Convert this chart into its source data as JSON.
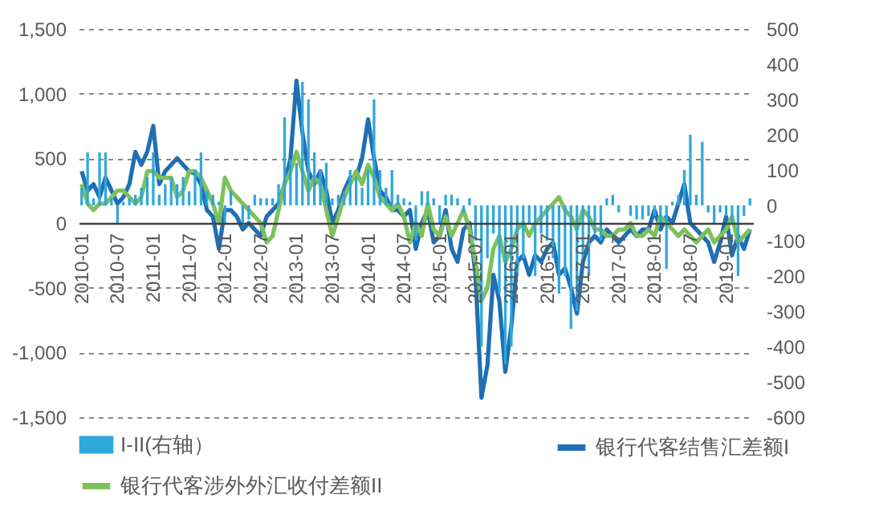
{
  "chart_data": {
    "type": "line",
    "categories": [
      "2010-01",
      null,
      null,
      null,
      null,
      null,
      "2010-07",
      null,
      null,
      null,
      null,
      null,
      "2011-01",
      null,
      null,
      null,
      null,
      null,
      "2011-07",
      null,
      null,
      null,
      null,
      null,
      "2012-01",
      null,
      null,
      null,
      null,
      null,
      "2012-07",
      null,
      null,
      null,
      null,
      null,
      "2013-01",
      null,
      null,
      null,
      null,
      null,
      "2013-07",
      null,
      null,
      null,
      null,
      null,
      "2014-01",
      null,
      null,
      null,
      null,
      null,
      "2014-07",
      null,
      null,
      null,
      null,
      null,
      "2015-01",
      null,
      null,
      null,
      null,
      null,
      "2015-07",
      null,
      null,
      null,
      null,
      null,
      "2016-01",
      null,
      null,
      null,
      null,
      null,
      "2016-07",
      null,
      null,
      null,
      null,
      null,
      "2017-01",
      null,
      null,
      null,
      null,
      null,
      "2017-07",
      null,
      null,
      null,
      null,
      null,
      "2018-01",
      null,
      null,
      null,
      null,
      null,
      "2018-07",
      null,
      null,
      null,
      null,
      null,
      "2019-01",
      null,
      null,
      null,
      null
    ],
    "series": [
      {
        "name": "I-II(右轴）",
        "type": "bar",
        "axis": "y2",
        "color": "#2ea8dc",
        "values": [
          50,
          150,
          20,
          150,
          150,
          20,
          -50,
          10,
          20,
          30,
          50,
          80,
          150,
          30,
          60,
          80,
          60,
          80,
          40,
          100,
          150,
          40,
          30,
          10,
          -50,
          40,
          0,
          -50,
          -40,
          30,
          20,
          20,
          20,
          60,
          250,
          130,
          120,
          350,
          300,
          150,
          100,
          120,
          20,
          30,
          40,
          100,
          80,
          50,
          100,
          300,
          100,
          50,
          100,
          30,
          20,
          10,
          -100,
          40,
          40,
          20,
          -50,
          30,
          30,
          20,
          -20,
          20,
          -100,
          -400,
          -150,
          -80,
          -250,
          -450,
          -400,
          -200,
          -150,
          -50,
          -200,
          -80,
          -100,
          -150,
          -250,
          -200,
          -350,
          -300,
          -150,
          -200,
          -80,
          -100,
          20,
          30,
          -20,
          0,
          -30,
          -40,
          -40,
          -30,
          -30,
          -50,
          -180,
          10,
          30,
          100,
          200,
          30,
          180,
          -20,
          -50,
          -20,
          -30,
          -50,
          -200,
          -30,
          20
        ]
      },
      {
        "name": "银行代客结售汇差额I",
        "color": "#1f6fb4",
        "values": [
          400,
          250,
          300,
          200,
          350,
          250,
          150,
          200,
          300,
          550,
          450,
          550,
          750,
          300,
          400,
          450,
          500,
          450,
          400,
          380,
          300,
          100,
          50,
          -200,
          100,
          100,
          50,
          -50,
          0,
          -50,
          -100,
          50,
          100,
          150,
          300,
          500,
          1100,
          700,
          400,
          300,
          400,
          250,
          0,
          100,
          250,
          350,
          350,
          500,
          800,
          500,
          250,
          200,
          100,
          100,
          50,
          100,
          -200,
          0,
          100,
          -150,
          -100,
          100,
          -200,
          -300,
          -50,
          0,
          -400,
          -1350,
          -1100,
          -400,
          -600,
          -1150,
          -800,
          -300,
          -250,
          -400,
          -250,
          -300,
          -200,
          -150,
          -400,
          -350,
          -500,
          -700,
          -300,
          -150,
          -100,
          -150,
          -50,
          -100,
          -150,
          -100,
          -50,
          -100,
          -50,
          -50,
          100,
          -50,
          50,
          0,
          150,
          300,
          0,
          -50,
          -100,
          -150,
          -300,
          -150,
          50,
          -250,
          -100,
          -200,
          -50
        ]
      },
      {
        "name": "银行代客涉外外汇收付差额II",
        "color": "#7dc15b",
        "values": [
          300,
          150,
          100,
          150,
          150,
          200,
          250,
          250,
          200,
          150,
          200,
          400,
          400,
          350,
          350,
          350,
          200,
          250,
          400,
          400,
          350,
          250,
          150,
          0,
          350,
          250,
          200,
          150,
          100,
          50,
          0,
          -150,
          -100,
          100,
          300,
          400,
          550,
          400,
          250,
          350,
          300,
          100,
          -100,
          50,
          200,
          300,
          400,
          300,
          450,
          350,
          200,
          150,
          100,
          150,
          50,
          -150,
          0,
          -100,
          150,
          -50,
          -100,
          50,
          -100,
          0,
          100,
          -50,
          -300,
          -600,
          -500,
          -200,
          -100,
          -300,
          -200,
          -50,
          0,
          -100,
          0,
          50,
          100,
          150,
          200,
          100,
          50,
          -50,
          100,
          50,
          -50,
          -50,
          -100,
          -100,
          -50,
          -50,
          0,
          -100,
          -100,
          -50,
          -100,
          50,
          0,
          -50,
          -100,
          -50,
          -100,
          -150,
          -100,
          -50,
          -150,
          -100,
          -50,
          50,
          -150,
          -100,
          -50
        ]
      }
    ],
    "ylim": [
      -1500,
      1500
    ],
    "yticks": [
      {
        "value": -1500,
        "label": "-1,500"
      },
      {
        "value": -1000,
        "label": "-1,000"
      },
      -500,
      0,
      500,
      {
        "value": 1000,
        "label": "1,000"
      },
      {
        "value": 1500,
        "label": "1,500"
      }
    ],
    "y2lim": [
      -600,
      500
    ],
    "y2ticks": [
      -600,
      -500,
      -400,
      -300,
      -200,
      -100,
      0,
      100,
      200,
      300,
      400,
      500
    ],
    "grid": "y",
    "legend": "bottom"
  }
}
